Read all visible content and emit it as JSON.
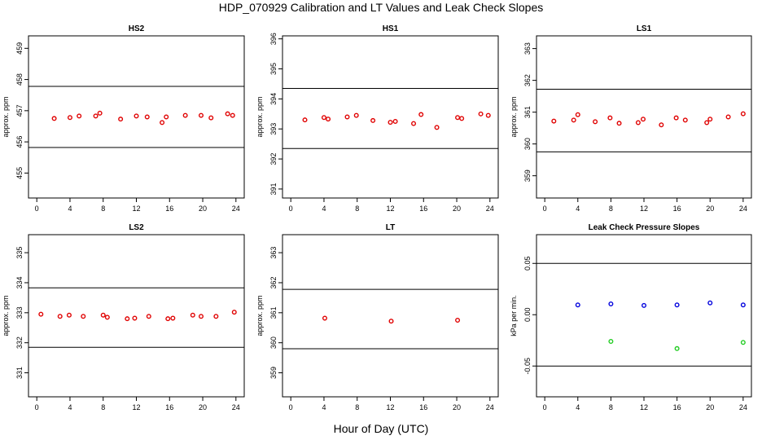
{
  "title": "HDP_070929  Calibration and LT Values and Leak Check Slopes",
  "xlabel": "Hour of Day (UTC)",
  "colors": {
    "calibration": "#e00000",
    "leak_blue": "#0000dd",
    "leak_green": "#22cc22"
  },
  "chart_data": [
    {
      "type": "scatter",
      "title": "HS2",
      "ylabel": "approx. ppm",
      "xlim": [
        -1,
        25
      ],
      "ylim": [
        454.2,
        459.4
      ],
      "xticks": [
        "0",
        "4",
        "8",
        "12",
        "16",
        "20",
        "24"
      ],
      "yticks": [
        "455",
        "456",
        "457",
        "458",
        "459"
      ],
      "hlines": [
        455.82,
        457.78
      ],
      "series": [
        {
          "color": "calibration",
          "x": [
            2.1,
            4.0,
            5.1,
            7.1,
            7.6,
            10.1,
            12.0,
            13.3,
            15.1,
            15.6,
            17.9,
            19.8,
            21.0,
            23.0,
            23.6
          ],
          "y": [
            456.75,
            456.78,
            456.83,
            456.83,
            456.92,
            456.73,
            456.83,
            456.8,
            456.62,
            456.8,
            456.85,
            456.85,
            456.77,
            456.9,
            456.85
          ]
        }
      ]
    },
    {
      "type": "scatter",
      "title": "HS1",
      "ylabel": "approx. ppm",
      "xlim": [
        -1,
        25
      ],
      "ylim": [
        390.7,
        396.1
      ],
      "xticks": [
        "0",
        "4",
        "8",
        "12",
        "16",
        "20",
        "24"
      ],
      "yticks": [
        "391",
        "392",
        "393",
        "394",
        "395",
        "396"
      ],
      "hlines": [
        392.35,
        394.35
      ],
      "series": [
        {
          "color": "calibration",
          "x": [
            1.7,
            4.0,
            4.5,
            6.8,
            7.9,
            9.9,
            12.0,
            12.6,
            14.8,
            15.7,
            17.6,
            20.1,
            20.6,
            22.9,
            23.8
          ],
          "y": [
            393.3,
            393.38,
            393.33,
            393.4,
            393.45,
            393.28,
            393.22,
            393.25,
            393.18,
            393.48,
            393.05,
            393.38,
            393.35,
            393.5,
            393.45
          ]
        }
      ]
    },
    {
      "type": "scatter",
      "title": "LS1",
      "ylabel": "approx. ppm",
      "xlim": [
        -1,
        25
      ],
      "ylim": [
        358.3,
        363.4
      ],
      "xticks": [
        "0",
        "4",
        "8",
        "12",
        "16",
        "20",
        "24"
      ],
      "yticks": [
        "359",
        "360",
        "361",
        "362",
        "363"
      ],
      "hlines": [
        359.75,
        361.72
      ],
      "series": [
        {
          "color": "calibration",
          "x": [
            1.1,
            3.5,
            4.0,
            6.1,
            7.9,
            9.0,
            11.3,
            11.9,
            14.1,
            15.9,
            17.0,
            19.6,
            20.0,
            22.2,
            24.0
          ],
          "y": [
            360.72,
            360.75,
            360.92,
            360.7,
            360.82,
            360.65,
            360.67,
            360.78,
            360.6,
            360.82,
            360.75,
            360.67,
            360.78,
            360.85,
            360.95
          ]
        }
      ]
    },
    {
      "type": "scatter",
      "title": "LS2",
      "ylabel": "approx. ppm",
      "xlim": [
        -1,
        25
      ],
      "ylim": [
        330.2,
        335.6
      ],
      "xticks": [
        "0",
        "4",
        "8",
        "12",
        "16",
        "20",
        "24"
      ],
      "yticks": [
        "331",
        "332",
        "333",
        "334",
        "335"
      ],
      "hlines": [
        331.85,
        333.83
      ],
      "series": [
        {
          "color": "calibration",
          "x": [
            0.5,
            2.8,
            3.9,
            5.6,
            8.0,
            8.5,
            10.9,
            11.8,
            13.5,
            15.8,
            16.4,
            18.8,
            19.8,
            21.6,
            23.8
          ],
          "y": [
            332.95,
            332.88,
            332.92,
            332.88,
            332.92,
            332.85,
            332.8,
            332.82,
            332.88,
            332.8,
            332.82,
            332.92,
            332.88,
            332.88,
            333.02
          ]
        }
      ]
    },
    {
      "type": "scatter",
      "title": "LT",
      "ylabel": "approx. ppm",
      "xlim": [
        -1,
        25
      ],
      "ylim": [
        358.2,
        363.6
      ],
      "xticks": [
        "0",
        "4",
        "8",
        "12",
        "16",
        "20",
        "24"
      ],
      "yticks": [
        "359",
        "360",
        "361",
        "362",
        "363"
      ],
      "hlines": [
        359.8,
        361.78
      ],
      "series": [
        {
          "color": "calibration",
          "x": [
            4.1,
            12.1,
            20.1
          ],
          "y": [
            360.82,
            360.72,
            360.75
          ]
        }
      ]
    },
    {
      "type": "scatter",
      "title": "Leak Check Pressure Slopes",
      "ylabel": "kPa per min.",
      "xlim": [
        -1,
        25
      ],
      "ylim": [
        -0.08,
        0.078
      ],
      "xticks": [
        "0",
        "4",
        "8",
        "12",
        "16",
        "20",
        "24"
      ],
      "yticks": [
        "-0.05",
        "0.00",
        "0.05"
      ],
      "ytick_values": [
        -0.05,
        0.0,
        0.05
      ],
      "hlines": [
        -0.05,
        0.05
      ],
      "series": [
        {
          "color": "leak_blue",
          "x": [
            4.0,
            8.0,
            12.0,
            16.0,
            20.0,
            24.0
          ],
          "y": [
            0.0095,
            0.0105,
            0.009,
            0.0095,
            0.0115,
            0.0095
          ]
        },
        {
          "color": "leak_green",
          "x": [
            8.0,
            16.0,
            24.0
          ],
          "y": [
            -0.026,
            -0.033,
            -0.027
          ]
        }
      ]
    }
  ]
}
